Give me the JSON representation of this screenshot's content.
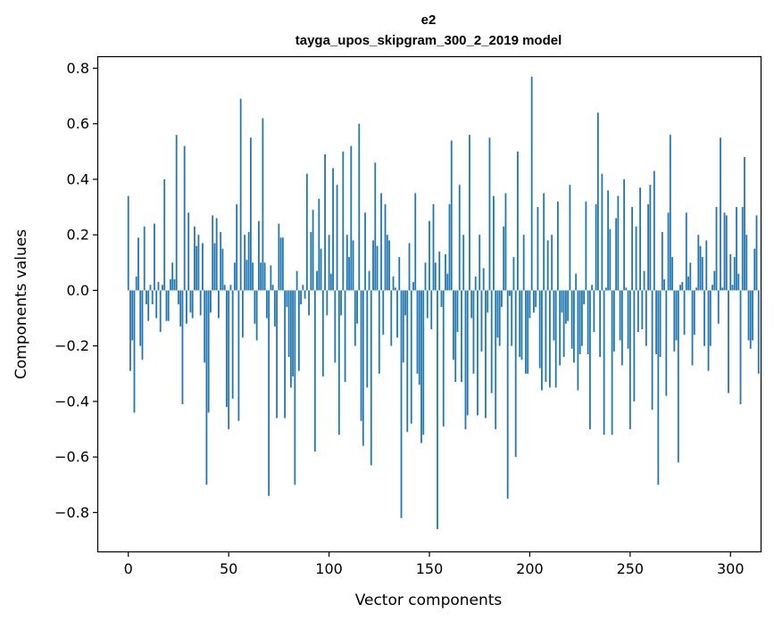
{
  "chart_data": {
    "type": "bar",
    "title": "e2",
    "subtitle": "tayga_upos_skipgram_300_2_2019 model",
    "xlabel": "Vector components",
    "ylabel": "Components values",
    "xlim": [
      -15,
      315
    ],
    "ylim": [
      -0.94,
      0.84
    ],
    "xticks": [
      0,
      50,
      100,
      150,
      200,
      250,
      300
    ],
    "xtick_labels": [
      "0",
      "50",
      "100",
      "150",
      "200",
      "250",
      "300"
    ],
    "yticks": [
      -0.8,
      -0.6,
      -0.4,
      -0.2,
      0.0,
      0.2,
      0.4,
      0.6,
      0.8
    ],
    "ytick_labels": [
      "−0.8",
      "−0.6",
      "−0.4",
      "−0.2",
      "0.0",
      "0.2",
      "0.4",
      "0.6",
      "0.8"
    ],
    "bar_color": "#1f77b4",
    "grid": false,
    "series": [
      {
        "name": "e2",
        "values": [
          0.34,
          -0.29,
          -0.18,
          -0.44,
          0.05,
          0.19,
          -0.2,
          -0.25,
          0.23,
          -0.05,
          -0.11,
          0.02,
          -0.05,
          0.24,
          -0.1,
          0.03,
          -0.15,
          0.02,
          0.4,
          -0.11,
          -0.11,
          0.04,
          0.1,
          0.04,
          0.56,
          -0.05,
          -0.13,
          -0.41,
          0.52,
          -0.12,
          0.28,
          -0.08,
          -0.1,
          0.23,
          0.16,
          0.2,
          -0.09,
          0.17,
          -0.26,
          -0.7,
          -0.44,
          -0.08,
          0.27,
          0.17,
          0.26,
          -0.1,
          0.21,
          0.15,
          0.02,
          -0.42,
          -0.5,
          0.02,
          -0.39,
          0.1,
          0.31,
          -0.47,
          0.69,
          -0.17,
          0.2,
          0.11,
          0.21,
          0.55,
          0.1,
          -0.12,
          -0.18,
          0.25,
          0.1,
          0.62,
          0.1,
          -0.1,
          -0.74,
          0.09,
          0.02,
          -0.13,
          -0.46,
          0.24,
          0.19,
          0.19,
          -0.46,
          -0.06,
          -0.24,
          -0.35,
          -0.31,
          -0.7,
          0.07,
          -0.29,
          -0.05,
          0.02,
          -0.03,
          0.42,
          -0.09,
          0.21,
          0.29,
          -0.58,
          0.07,
          0.33,
          0.15,
          -0.31,
          0.49,
          -0.09,
          0.2,
          0.06,
          0.44,
          -0.26,
          0.38,
          -0.52,
          -0.09,
          0.5,
          -0.33,
          0.2,
          0.12,
          0.52,
          0.18,
          -0.2,
          -0.12,
          0.6,
          -0.47,
          -0.56,
          0.28,
          -0.35,
          0.07,
          -0.63,
          0.18,
          0.46,
          0.16,
          -0.3,
          0.35,
          -0.16,
          0.31,
          0.2,
          0.18,
          -0.2,
          0.05,
          0.01,
          -0.17,
          0.12,
          -0.82,
          -0.26,
          -0.09,
          -0.51,
          0.17,
          -0.48,
          0.03,
          0.35,
          -0.3,
          -0.34,
          -0.55,
          -0.52,
          0.1,
          -0.1,
          0.25,
          -0.14,
          0.31,
          0.1,
          -0.86,
          0.14,
          -0.06,
          -0.49,
          0.13,
          0.06,
          0.31,
          0.54,
          -0.25,
          -0.33,
          -0.15,
          0.38,
          -0.33,
          0.2,
          -0.5,
          -0.45,
          0.56,
          -0.1,
          -0.3,
          0.05,
          -0.45,
          0.2,
          -0.22,
          0.08,
          -0.46,
          -0.08,
          0.55,
          -0.37,
          0.34,
          -0.5,
          -0.17,
          -0.2,
          -0.06,
          0.23,
          0.35,
          -0.75,
          -0.02,
          -0.2,
          0.12,
          -0.6,
          0.5,
          -0.24,
          -0.25,
          0.2,
          -0.3,
          -0.3,
          -0.1,
          0.77,
          -0.08,
          -0.06,
          0.3,
          -0.28,
          -0.36,
          0.35,
          -0.33,
          0.18,
          -0.35,
          0.2,
          -0.18,
          -0.35,
          0.32,
          -0.27,
          -0.08,
          -0.24,
          -0.12,
          -0.11,
          0.38,
          -0.21,
          -0.26,
          0.06,
          -0.36,
          -0.23,
          -0.2,
          -0.05,
          0.32,
          -0.23,
          -0.5,
          0.02,
          -0.15,
          0.31,
          0.64,
          -0.24,
          0.42,
          -0.52,
          0.01,
          0.36,
          0.22,
          -0.52,
          -0.22,
          0.26,
          0.34,
          -0.18,
          -0.27,
          0.4,
          0.01,
          -0.21,
          -0.5,
          0.3,
          -0.4,
          0.23,
          -0.15,
          0.37,
          -0.14,
          0.07,
          -0.2,
          0.31,
          0.38,
          -0.43,
          0.43,
          -0.23,
          -0.7,
          -0.24,
          0.21,
          0.04,
          -0.38,
          0.28,
          0.56,
          0.12,
          -0.22,
          -0.18,
          -0.62,
          0.02,
          0.03,
          -0.16,
          0.28,
          0.05,
          0.1,
          -0.27,
          -0.16,
          0.01,
          0.2,
          0.16,
          0.12,
          -0.2,
          0.18,
          -0.29,
          -0.2,
          0.02,
          0.07,
          0.3,
          -0.12,
          0.55,
          0.01,
          0.28,
          0.27,
          -0.37,
          0.13,
          0.02,
          0.12,
          0.3,
          0.06,
          -0.41,
          0.3,
          0.48,
          0.2,
          -0.18,
          -0.21,
          -0.18,
          0.15,
          0.27,
          -0.3
        ]
      }
    ]
  }
}
